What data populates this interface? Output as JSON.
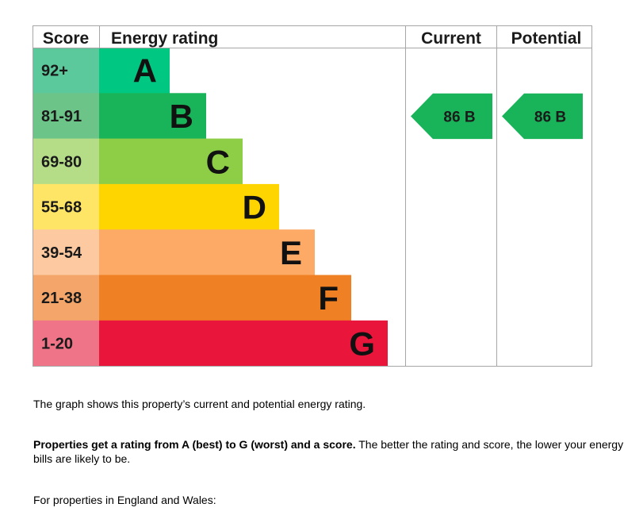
{
  "chart_data": {
    "type": "table",
    "headers": {
      "score": "Score",
      "rating": "Energy rating",
      "current": "Current",
      "potential": "Potential"
    },
    "bands": [
      {
        "letter": "A",
        "score": "92+",
        "color": "#00c781",
        "score_color": "#5cc99c"
      },
      {
        "letter": "B",
        "score": "81-91",
        "color": "#19b459",
        "score_color": "#6dc488"
      },
      {
        "letter": "C",
        "score": "69-80",
        "color": "#8dce46",
        "score_color": "#b5dd88"
      },
      {
        "letter": "D",
        "score": "55-68",
        "color": "#ffd500",
        "score_color": "#ffe566"
      },
      {
        "letter": "E",
        "score": "39-54",
        "color": "#fcaa65",
        "score_color": "#fdc9a0"
      },
      {
        "letter": "F",
        "score": "21-38",
        "color": "#ef8023",
        "score_color": "#f4a66a"
      },
      {
        "letter": "G",
        "score": "1-20",
        "color": "#e9153b",
        "score_color": "#f07488"
      }
    ],
    "current": {
      "score": 86,
      "letter": "B",
      "label": "86  B",
      "color": "#19b459"
    },
    "potential": {
      "score": 86,
      "letter": "B",
      "label": "86  B",
      "color": "#19b459"
    }
  },
  "text": {
    "line1": "The graph shows this property’s current and potential energy rating.",
    "line2_bold": "Properties get a rating from A (best) to G (worst) and a score.",
    "line2_rest": " The better the rating and score, the lower your energy bills are likely to be.",
    "line3": "For properties in England and Wales:"
  }
}
